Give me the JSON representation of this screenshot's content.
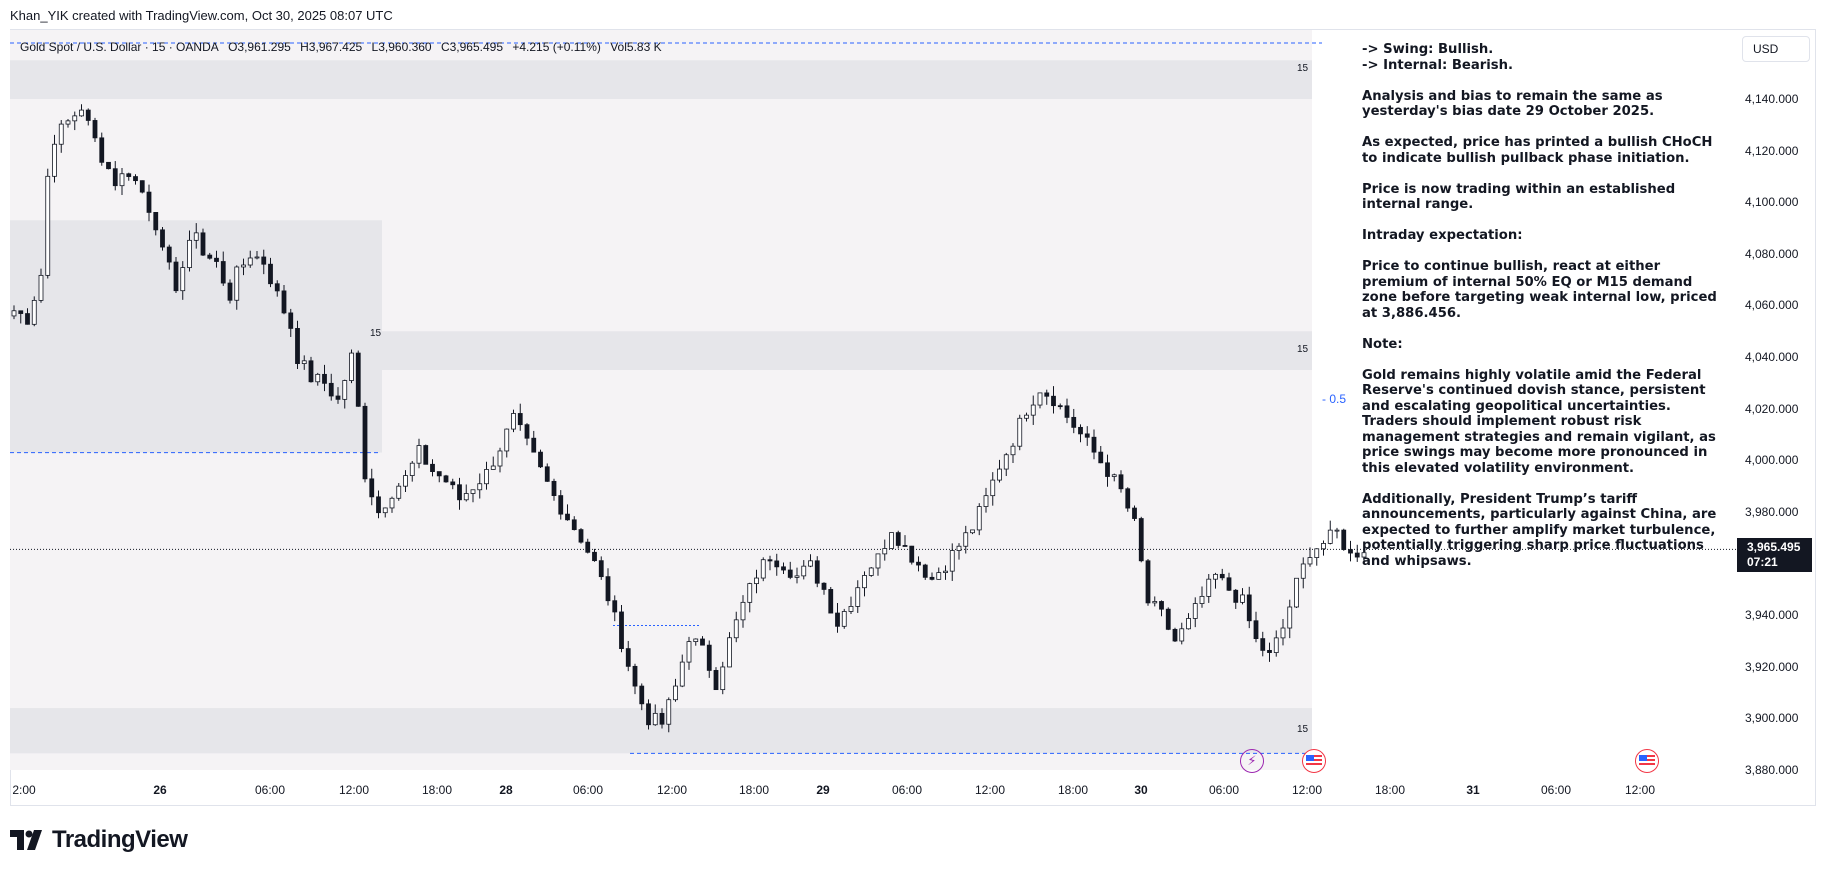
{
  "header": {
    "published_by": "Khan_YIK created with TradingView.com, Oct 30, 2025 08:07 UTC"
  },
  "symbol_bar": {
    "symbol": "Gold Spot / U.S. Dollar · 15 · OANDA",
    "open": "O3,961.295",
    "high": "H3,967.425",
    "low": "L3,960.360",
    "close": "C3,965.495",
    "change": "+4.215 (+0.11%)",
    "volume": "Vol5.83 K"
  },
  "currency_button": {
    "label": "USD"
  },
  "price_axis": {
    "labels": [
      "4,140.000",
      "4,120.000",
      "4,100.000",
      "4,080.000",
      "4,060.000",
      "4,040.000",
      "4,020.000",
      "4,000.000",
      "3,980.000",
      "3,960.000",
      "3,940.000",
      "3,920.000",
      "3,900.000",
      "3,880.000"
    ]
  },
  "current_price": {
    "price": "3,965.495",
    "countdown": "07:21"
  },
  "time_axis": {
    "labels": [
      {
        "text": "2:00",
        "bold": false
      },
      {
        "text": "26",
        "bold": true
      },
      {
        "text": "06:00",
        "bold": false
      },
      {
        "text": "12:00",
        "bold": false
      },
      {
        "text": "18:00",
        "bold": false
      },
      {
        "text": "28",
        "bold": true
      },
      {
        "text": "06:00",
        "bold": false
      },
      {
        "text": "12:00",
        "bold": false
      },
      {
        "text": "18:00",
        "bold": false
      },
      {
        "text": "29",
        "bold": true
      },
      {
        "text": "06:00",
        "bold": false
      },
      {
        "text": "12:00",
        "bold": false
      },
      {
        "text": "18:00",
        "bold": false
      },
      {
        "text": "30",
        "bold": true
      },
      {
        "text": "06:00",
        "bold": false
      },
      {
        "text": "12:00",
        "bold": false
      },
      {
        "text": "18:00",
        "bold": false
      },
      {
        "text": "31",
        "bold": true
      },
      {
        "text": "06:00",
        "bold": false
      },
      {
        "text": "12:00",
        "bold": false
      }
    ]
  },
  "zone_tags": [
    "15",
    "15",
    "15",
    "15"
  ],
  "fib_label": "- 0.5",
  "analysis": [
    "-> Swing: Bullish.\n-> Internal: Bearish.",
    "Analysis and bias to remain the same as yesterday's bias date 29 October 2025.",
    "As expected, price has printed a bullish CHoCH to indicate bullish pullback phase initiation.",
    "Price is now trading within an established internal range.",
    "Intraday expectation:",
    "Price to continue bullish, react at either premium of internal 50% EQ or M15 demand zone before targeting weak internal low, priced at 3,886.456.",
    "Note:",
    "Gold remains highly volatile amid the Federal Reserve's continued dovish stance, persistent and escalating geopolitical uncertainties. Traders should implement robust risk management strategies and remain vigilant, as price swings may become more pronounced in this elevated volatility environment.",
    "Additionally, President Trump’s tariff announcements, particularly against China, are expected to further amplify market turbulence, potentially triggering sharp price fluctuations and whipsaws."
  ],
  "logo": {
    "text": "TradingView"
  },
  "colors": {
    "up": "#131722",
    "down": "#131722",
    "up_fill": "#ffffff",
    "zone": "#e6e6ea",
    "range": "#f5f3f5",
    "dashed": "#2962ff"
  },
  "chart_data": {
    "type": "candlestick",
    "symbol": "XAUUSD",
    "timeframe": "15",
    "ylim": [
      3875,
      4150
    ],
    "current_price": 3965.495,
    "zones": [
      {
        "label": "15",
        "from": 4140,
        "to": 4155
      },
      {
        "label": "15",
        "from": 4035,
        "to": 4050
      },
      {
        "label": "15",
        "from": 3886.456,
        "to": 3904
      }
    ],
    "fib_level": {
      "label": "0.5",
      "price": 4022
    },
    "key_level": 3886.456,
    "path": [
      [
        0,
        4058
      ],
      [
        2,
        4055
      ],
      [
        4,
        4072
      ],
      [
        5,
        4110
      ],
      [
        6,
        4125
      ],
      [
        8,
        4131
      ],
      [
        10,
        4137
      ],
      [
        11,
        4130
      ],
      [
        13,
        4118
      ],
      [
        15,
        4108
      ],
      [
        17,
        4112
      ],
      [
        19,
        4104
      ],
      [
        21,
        4092
      ],
      [
        22,
        4080
      ],
      [
        24,
        4068
      ],
      [
        25,
        4075
      ],
      [
        27,
        4090
      ],
      [
        28,
        4080
      ],
      [
        30,
        4076
      ],
      [
        32,
        4064
      ],
      [
        33,
        4072
      ],
      [
        35,
        4080
      ],
      [
        37,
        4077
      ],
      [
        39,
        4064
      ],
      [
        41,
        4052
      ],
      [
        42,
        4040
      ],
      [
        44,
        4032
      ],
      [
        46,
        4030
      ],
      [
        48,
        4023
      ],
      [
        50,
        4040
      ],
      [
        51,
        4020
      ],
      [
        52,
        3995
      ],
      [
        54,
        3980
      ],
      [
        56,
        3988
      ],
      [
        58,
        3993
      ],
      [
        60,
        4003
      ],
      [
        62,
        3996
      ],
      [
        64,
        3992
      ],
      [
        66,
        3985
      ],
      [
        68,
        3990
      ],
      [
        70,
        3995
      ],
      [
        72,
        4005
      ],
      [
        74,
        4016
      ],
      [
        76,
        4006
      ],
      [
        78,
        3996
      ],
      [
        80,
        3986
      ],
      [
        82,
        3978
      ],
      [
        84,
        3970
      ],
      [
        86,
        3960
      ],
      [
        88,
        3947
      ],
      [
        90,
        3930
      ],
      [
        92,
        3912
      ],
      [
        94,
        3900
      ],
      [
        96,
        3898
      ],
      [
        98,
        3912
      ],
      [
        100,
        3932
      ],
      [
        102,
        3926
      ],
      [
        104,
        3914
      ],
      [
        106,
        3930
      ],
      [
        108,
        3944
      ],
      [
        110,
        3956
      ],
      [
        112,
        3963
      ],
      [
        114,
        3960
      ],
      [
        116,
        3955
      ],
      [
        118,
        3959
      ],
      [
        120,
        3950
      ],
      [
        122,
        3937
      ],
      [
        124,
        3946
      ],
      [
        126,
        3957
      ],
      [
        128,
        3962
      ],
      [
        130,
        3974
      ],
      [
        132,
        3966
      ],
      [
        134,
        3960
      ],
      [
        136,
        3954
      ],
      [
        138,
        3960
      ],
      [
        140,
        3967
      ],
      [
        142,
        3974
      ],
      [
        144,
        3985
      ],
      [
        146,
        3998
      ],
      [
        148,
        4008
      ],
      [
        150,
        4020
      ],
      [
        152,
        4028
      ],
      [
        154,
        4024
      ],
      [
        156,
        4017
      ],
      [
        158,
        4010
      ],
      [
        160,
        4003
      ],
      [
        162,
        3996
      ],
      [
        164,
        3988
      ],
      [
        166,
        3975
      ],
      [
        168,
        3945
      ],
      [
        170,
        3940
      ],
      [
        172,
        3930
      ],
      [
        174,
        3937
      ],
      [
        176,
        3947
      ],
      [
        178,
        3955
      ],
      [
        180,
        3950
      ],
      [
        182,
        3945
      ],
      [
        184,
        3930
      ],
      [
        186,
        3924
      ],
      [
        188,
        3935
      ],
      [
        190,
        3952
      ],
      [
        192,
        3965
      ],
      [
        194,
        3968
      ],
      [
        196,
        3972
      ],
      [
        198,
        3963
      ],
      [
        200,
        3966
      ]
    ]
  }
}
